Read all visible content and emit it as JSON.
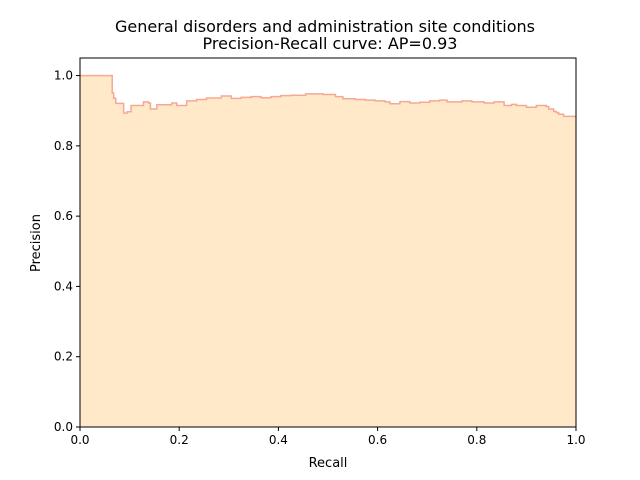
{
  "chart_data": {
    "type": "area",
    "title_line1": "General disorders and administration site conditions",
    "title_line2": "Precision-Recall curve: AP=0.93",
    "xlabel": "Recall",
    "ylabel": "Precision",
    "xlim": [
      0.0,
      1.0
    ],
    "ylim": [
      0.0,
      1.05
    ],
    "x_ticks": [
      "0.0",
      "0.2",
      "0.4",
      "0.6",
      "0.8",
      "1.0"
    ],
    "y_ticks": [
      "0.0",
      "0.2",
      "0.4",
      "0.6",
      "0.8",
      "1.0"
    ],
    "grid": false,
    "step": "post",
    "fill_color": "#ffe9c9",
    "line_color": "#f4a996",
    "recall": [
      0.0,
      0.065,
      0.068,
      0.072,
      0.088,
      0.095,
      0.103,
      0.128,
      0.138,
      0.142,
      0.155,
      0.185,
      0.195,
      0.215,
      0.235,
      0.255,
      0.285,
      0.305,
      0.325,
      0.345,
      0.365,
      0.385,
      0.405,
      0.425,
      0.455,
      0.49,
      0.515,
      0.53,
      0.555,
      0.575,
      0.595,
      0.615,
      0.625,
      0.645,
      0.665,
      0.685,
      0.705,
      0.725,
      0.74,
      0.77,
      0.79,
      0.815,
      0.835,
      0.855,
      0.87,
      0.88,
      0.9,
      0.92,
      0.94,
      0.945,
      0.955,
      0.96,
      0.965,
      0.975,
      1.0
    ],
    "precision": [
      1.0,
      0.95,
      0.935,
      0.921,
      0.893,
      0.897,
      0.915,
      0.925,
      0.922,
      0.905,
      0.917,
      0.922,
      0.915,
      0.928,
      0.932,
      0.936,
      0.942,
      0.935,
      0.938,
      0.94,
      0.937,
      0.94,
      0.943,
      0.944,
      0.948,
      0.946,
      0.94,
      0.934,
      0.932,
      0.93,
      0.928,
      0.925,
      0.92,
      0.926,
      0.922,
      0.924,
      0.928,
      0.93,
      0.925,
      0.928,
      0.925,
      0.922,
      0.925,
      0.915,
      0.918,
      0.915,
      0.91,
      0.915,
      0.912,
      0.905,
      0.898,
      0.895,
      0.89,
      0.884,
      0.884
    ]
  }
}
